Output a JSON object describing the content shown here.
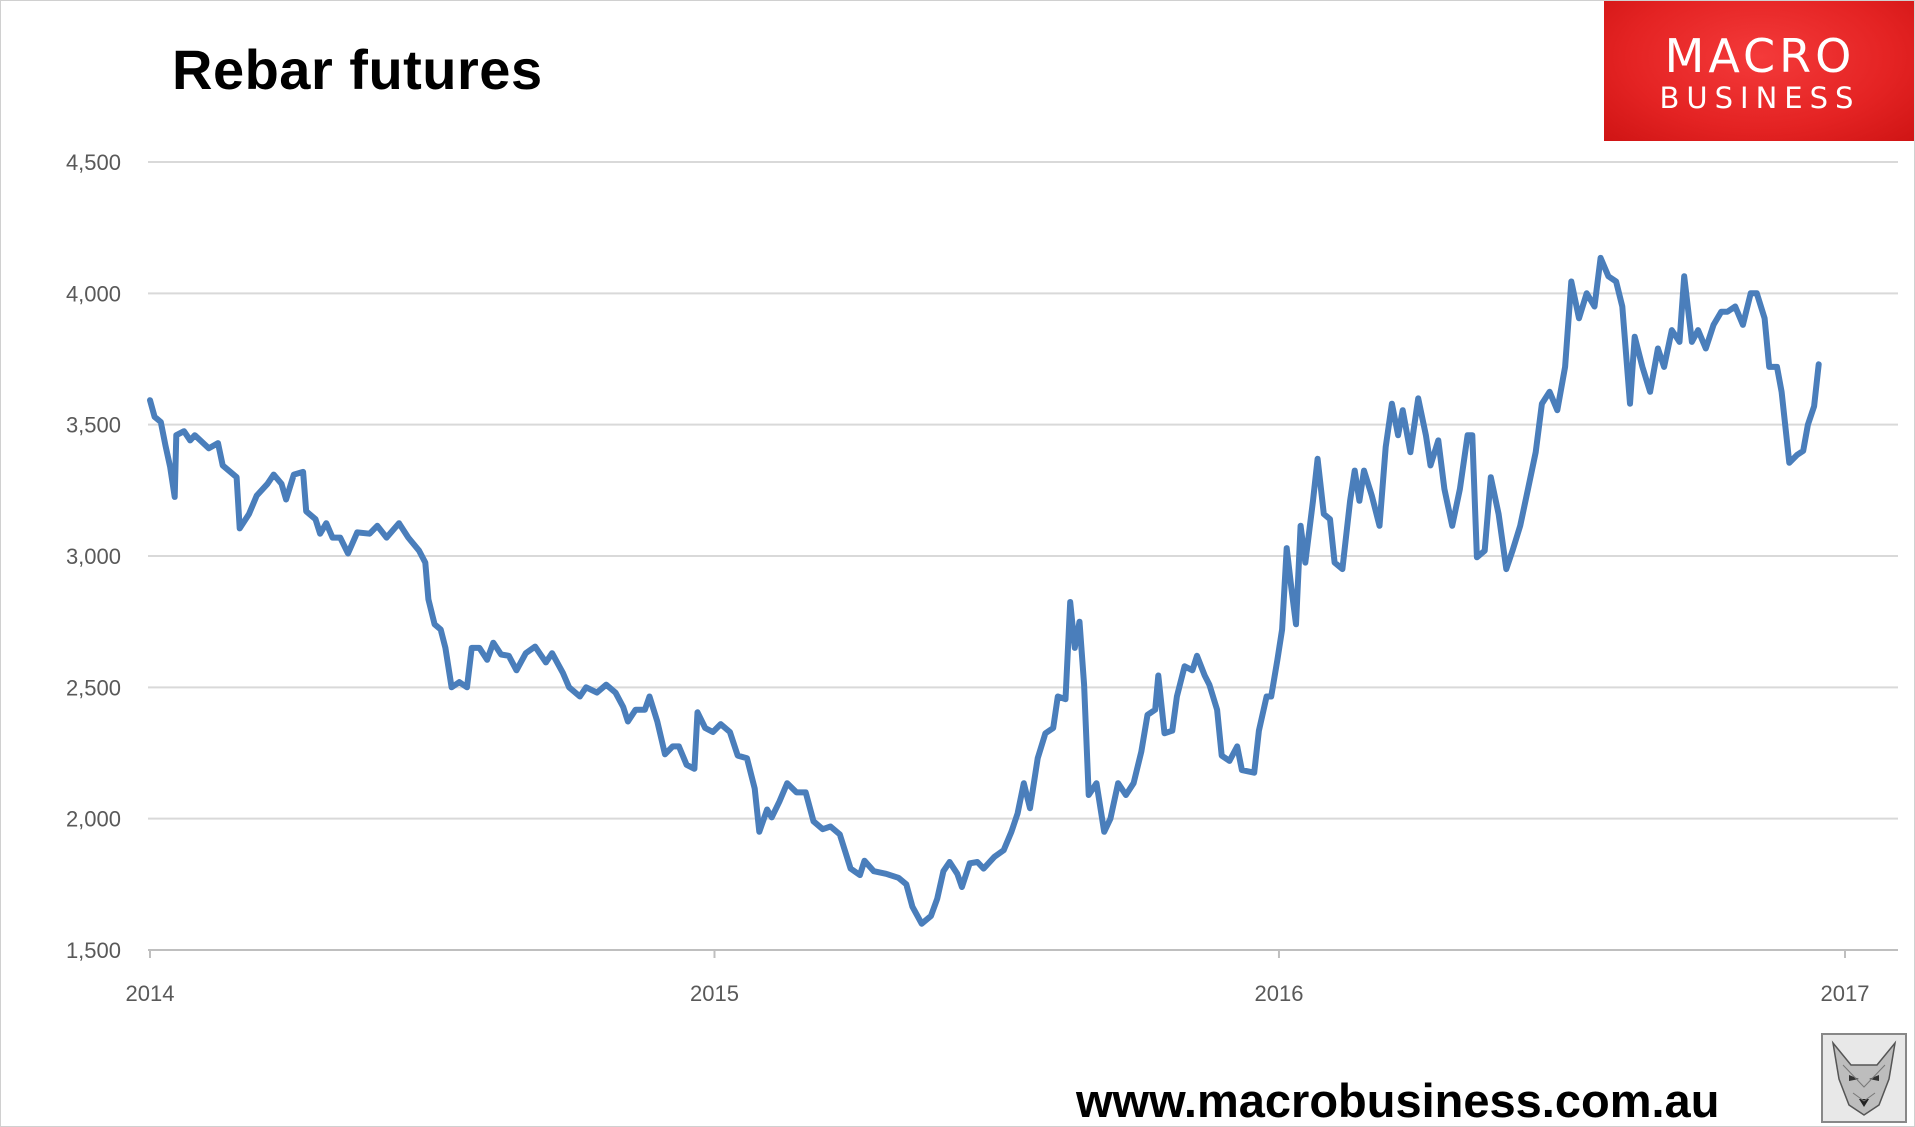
{
  "title": "Rebar futures",
  "logo": {
    "line1": "MACRO",
    "line2": "BUSINESS",
    "color": "#e42323"
  },
  "website": "www.macrobusiness.com.au",
  "chart_data": {
    "type": "line",
    "title": "Rebar futures",
    "xlabel": "",
    "ylabel": "",
    "xlim": [
      "2014-01-01",
      "2017-01-01"
    ],
    "ylim": [
      1500,
      4500
    ],
    "x_ticks": [
      "2014",
      "2015",
      "2016",
      "2017"
    ],
    "y_ticks": [
      "1,500",
      "2,000",
      "2,500",
      "3,000",
      "3,500",
      "4,000",
      "4,500"
    ],
    "y_tick_values": [
      1500,
      2000,
      2500,
      3000,
      3500,
      4000,
      4500
    ],
    "grid": "horizontal",
    "legend": "none",
    "line_color": "#4a7ebb",
    "series": [
      {
        "points": [
          [
            "2014-01-01",
            3593
          ],
          [
            "2014-01-04",
            3530
          ],
          [
            "2014-01-08",
            3510
          ],
          [
            "2014-01-11",
            3420
          ],
          [
            "2014-01-14",
            3340
          ],
          [
            "2014-01-17",
            3225
          ],
          [
            "2014-01-18",
            3460
          ],
          [
            "2014-01-23",
            3475
          ],
          [
            "2014-01-27",
            3440
          ],
          [
            "2014-01-30",
            3460
          ],
          [
            "2014-02-08",
            3410
          ],
          [
            "2014-02-14",
            3430
          ],
          [
            "2014-02-17",
            3345
          ],
          [
            "2014-02-22",
            3320
          ],
          [
            "2014-02-26",
            3300
          ],
          [
            "2014-02-28",
            3105
          ],
          [
            "2014-03-06",
            3160
          ],
          [
            "2014-03-11",
            3230
          ],
          [
            "2014-03-18",
            3275
          ],
          [
            "2014-03-22",
            3310
          ],
          [
            "2014-03-27",
            3275
          ],
          [
            "2014-03-30",
            3215
          ],
          [
            "2014-04-04",
            3310
          ],
          [
            "2014-04-10",
            3320
          ],
          [
            "2014-04-12",
            3170
          ],
          [
            "2014-04-18",
            3140
          ],
          [
            "2014-04-21",
            3085
          ],
          [
            "2014-04-25",
            3125
          ],
          [
            "2014-04-29",
            3070
          ],
          [
            "2014-05-04",
            3070
          ],
          [
            "2014-05-09",
            3010
          ],
          [
            "2014-05-15",
            3090
          ],
          [
            "2014-05-23",
            3085
          ],
          [
            "2014-05-28",
            3115
          ],
          [
            "2014-06-03",
            3070
          ],
          [
            "2014-06-11",
            3125
          ],
          [
            "2014-06-17",
            3070
          ],
          [
            "2014-06-24",
            3020
          ],
          [
            "2014-06-28",
            2975
          ],
          [
            "2014-06-30",
            2835
          ],
          [
            "2014-07-04",
            2740
          ],
          [
            "2014-07-08",
            2720
          ],
          [
            "2014-07-11",
            2650
          ],
          [
            "2014-07-15",
            2500
          ],
          [
            "2014-07-20",
            2520
          ],
          [
            "2014-07-25",
            2500
          ],
          [
            "2014-07-28",
            2650
          ],
          [
            "2014-08-02",
            2650
          ],
          [
            "2014-08-07",
            2605
          ],
          [
            "2014-08-11",
            2670
          ],
          [
            "2014-08-16",
            2625
          ],
          [
            "2014-08-21",
            2620
          ],
          [
            "2014-08-26",
            2565
          ],
          [
            "2014-09-01",
            2630
          ],
          [
            "2014-09-07",
            2655
          ],
          [
            "2014-09-14",
            2595
          ],
          [
            "2014-09-18",
            2630
          ],
          [
            "2014-09-25",
            2555
          ],
          [
            "2014-09-29",
            2500
          ],
          [
            "2014-10-06",
            2465
          ],
          [
            "2014-10-10",
            2500
          ],
          [
            "2014-10-17",
            2480
          ],
          [
            "2014-10-23",
            2510
          ],
          [
            "2014-10-29",
            2480
          ],
          [
            "2014-11-03",
            2425
          ],
          [
            "2014-11-06",
            2370
          ],
          [
            "2014-11-11",
            2415
          ],
          [
            "2014-11-17",
            2415
          ],
          [
            "2014-11-20",
            2465
          ],
          [
            "2014-11-25",
            2370
          ],
          [
            "2014-11-30",
            2245
          ],
          [
            "2014-12-05",
            2275
          ],
          [
            "2014-12-09",
            2275
          ],
          [
            "2014-12-14",
            2205
          ],
          [
            "2014-12-19",
            2190
          ],
          [
            "2014-12-21",
            2405
          ],
          [
            "2014-12-26",
            2345
          ],
          [
            "2014-12-31",
            2330
          ],
          [
            "2015-01-05",
            2360
          ],
          [
            "2015-01-11",
            2330
          ],
          [
            "2015-01-16",
            2240
          ],
          [
            "2015-01-22",
            2230
          ],
          [
            "2015-01-27",
            2115
          ],
          [
            "2015-01-30",
            1950
          ],
          [
            "2015-02-04",
            2035
          ],
          [
            "2015-02-07",
            2005
          ],
          [
            "2015-02-12",
            2065
          ],
          [
            "2015-02-17",
            2135
          ],
          [
            "2015-02-23",
            2100
          ],
          [
            "2015-03-01",
            2100
          ],
          [
            "2015-03-06",
            1990
          ],
          [
            "2015-03-12",
            1960
          ],
          [
            "2015-03-17",
            1970
          ],
          [
            "2015-03-23",
            1940
          ],
          [
            "2015-03-30",
            1810
          ],
          [
            "2015-04-05",
            1785
          ],
          [
            "2015-04-08",
            1840
          ],
          [
            "2015-04-14",
            1800
          ],
          [
            "2015-04-22",
            1790
          ],
          [
            "2015-04-30",
            1775
          ],
          [
            "2015-05-05",
            1750
          ],
          [
            "2015-05-09",
            1665
          ],
          [
            "2015-05-15",
            1600
          ],
          [
            "2015-05-21",
            1630
          ],
          [
            "2015-05-25",
            1695
          ],
          [
            "2015-05-29",
            1800
          ],
          [
            "2015-06-02",
            1835
          ],
          [
            "2015-06-07",
            1790
          ],
          [
            "2015-06-10",
            1740
          ],
          [
            "2015-06-15",
            1830
          ],
          [
            "2015-06-20",
            1835
          ],
          [
            "2015-06-24",
            1810
          ],
          [
            "2015-07-01",
            1855
          ],
          [
            "2015-07-07",
            1880
          ],
          [
            "2015-07-12",
            1950
          ],
          [
            "2015-07-16",
            2020
          ],
          [
            "2015-07-20",
            2135
          ],
          [
            "2015-07-24",
            2040
          ],
          [
            "2015-07-29",
            2230
          ],
          [
            "2015-08-03",
            2325
          ],
          [
            "2015-08-08",
            2345
          ],
          [
            "2015-08-11",
            2465
          ],
          [
            "2015-08-16",
            2455
          ],
          [
            "2015-08-19",
            2825
          ],
          [
            "2015-08-22",
            2650
          ],
          [
            "2015-08-25",
            2750
          ],
          [
            "2015-08-28",
            2510
          ],
          [
            "2015-08-31",
            2090
          ],
          [
            "2015-09-05",
            2135
          ],
          [
            "2015-09-10",
            1950
          ],
          [
            "2015-09-14",
            2000
          ],
          [
            "2015-09-19",
            2135
          ],
          [
            "2015-09-24",
            2090
          ],
          [
            "2015-09-29",
            2135
          ],
          [
            "2015-10-04",
            2255
          ],
          [
            "2015-10-08",
            2395
          ],
          [
            "2015-10-13",
            2415
          ],
          [
            "2015-10-15",
            2545
          ],
          [
            "2015-10-19",
            2325
          ],
          [
            "2015-10-24",
            2335
          ],
          [
            "2015-10-27",
            2465
          ],
          [
            "2015-11-01",
            2580
          ],
          [
            "2015-11-06",
            2565
          ],
          [
            "2015-11-09",
            2620
          ],
          [
            "2015-11-14",
            2545
          ],
          [
            "2015-11-17",
            2510
          ],
          [
            "2015-11-22",
            2415
          ],
          [
            "2015-11-25",
            2240
          ],
          [
            "2015-11-30",
            2220
          ],
          [
            "2015-12-05",
            2275
          ],
          [
            "2015-12-08",
            2185
          ],
          [
            "2015-12-16",
            2175
          ],
          [
            "2015-12-19",
            2335
          ],
          [
            "2015-12-24",
            2465
          ],
          [
            "2015-12-27",
            2465
          ],
          [
            "2015-12-31",
            2605
          ],
          [
            "2016-01-03",
            2720
          ],
          [
            "2016-01-06",
            3030
          ],
          [
            "2016-01-09",
            2880
          ],
          [
            "2016-01-12",
            2740
          ],
          [
            "2016-01-15",
            3115
          ],
          [
            "2016-01-18",
            2975
          ],
          [
            "2016-01-23",
            3210
          ],
          [
            "2016-01-26",
            3370
          ],
          [
            "2016-01-30",
            3160
          ],
          [
            "2016-02-03",
            3140
          ],
          [
            "2016-02-06",
            2975
          ],
          [
            "2016-02-11",
            2950
          ],
          [
            "2016-02-16",
            3210
          ],
          [
            "2016-02-19",
            3325
          ],
          [
            "2016-02-22",
            3210
          ],
          [
            "2016-02-25",
            3325
          ],
          [
            "2016-03-01",
            3230
          ],
          [
            "2016-03-06",
            3115
          ],
          [
            "2016-03-10",
            3415
          ],
          [
            "2016-03-14",
            3580
          ],
          [
            "2016-03-18",
            3460
          ],
          [
            "2016-03-21",
            3555
          ],
          [
            "2016-03-26",
            3395
          ],
          [
            "2016-03-31",
            3600
          ],
          [
            "2016-04-05",
            3460
          ],
          [
            "2016-04-08",
            3345
          ],
          [
            "2016-04-13",
            3440
          ],
          [
            "2016-04-17",
            3255
          ],
          [
            "2016-04-22",
            3115
          ],
          [
            "2016-04-27",
            3255
          ],
          [
            "2016-05-02",
            3460
          ],
          [
            "2016-05-05",
            3460
          ],
          [
            "2016-05-08",
            2995
          ],
          [
            "2016-05-13",
            3020
          ],
          [
            "2016-05-17",
            3300
          ],
          [
            "2016-05-22",
            3160
          ],
          [
            "2016-05-27",
            2950
          ],
          [
            "2016-05-31",
            3020
          ],
          [
            "2016-06-05",
            3115
          ],
          [
            "2016-06-10",
            3255
          ],
          [
            "2016-06-15",
            3395
          ],
          [
            "2016-06-19",
            3580
          ],
          [
            "2016-06-24",
            3625
          ],
          [
            "2016-06-29",
            3555
          ],
          [
            "2016-07-04",
            3720
          ],
          [
            "2016-07-08",
            4045
          ],
          [
            "2016-07-13",
            3905
          ],
          [
            "2016-07-18",
            4000
          ],
          [
            "2016-07-23",
            3950
          ],
          [
            "2016-07-27",
            4135
          ],
          [
            "2016-08-01",
            4065
          ],
          [
            "2016-08-06",
            4045
          ],
          [
            "2016-08-10",
            3950
          ],
          [
            "2016-08-15",
            3580
          ],
          [
            "2016-08-18",
            3835
          ],
          [
            "2016-08-23",
            3720
          ],
          [
            "2016-08-28",
            3625
          ],
          [
            "2016-09-02",
            3790
          ],
          [
            "2016-09-06",
            3720
          ],
          [
            "2016-09-11",
            3860
          ],
          [
            "2016-09-16",
            3815
          ],
          [
            "2016-09-19",
            4065
          ],
          [
            "2016-09-24",
            3815
          ],
          [
            "2016-09-28",
            3860
          ],
          [
            "2016-10-03",
            3790
          ],
          [
            "2016-10-08",
            3880
          ],
          [
            "2016-10-13",
            3930
          ],
          [
            "2016-10-17",
            3930
          ],
          [
            "2016-10-22",
            3950
          ],
          [
            "2016-10-27",
            3880
          ],
          [
            "2016-11-01",
            4000
          ],
          [
            "2016-11-05",
            4000
          ],
          [
            "2016-11-10",
            3905
          ],
          [
            "2016-11-13",
            3720
          ],
          [
            "2016-11-18",
            3720
          ],
          [
            "2016-11-21",
            3625
          ],
          [
            "2016-11-26",
            3355
          ],
          [
            "2016-12-01",
            3385
          ],
          [
            "2016-12-05",
            3400
          ],
          [
            "2016-12-08",
            3500
          ],
          [
            "2016-12-12",
            3570
          ],
          [
            "2016-12-15",
            3730
          ]
        ]
      }
    ]
  }
}
